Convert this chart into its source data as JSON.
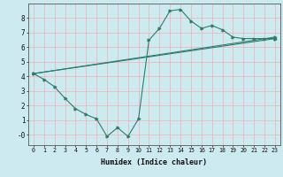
{
  "xlabel": "Humidex (Indice chaleur)",
  "line_color": "#2e7d6e",
  "bg_color": "#cdeaf0",
  "grid_color": "#f0b0b0",
  "xlim": [
    -0.5,
    23.5
  ],
  "ylim": [
    -0.7,
    9.0
  ],
  "xticks": [
    0,
    1,
    2,
    3,
    4,
    5,
    6,
    7,
    8,
    9,
    10,
    11,
    12,
    13,
    14,
    15,
    16,
    17,
    18,
    19,
    20,
    21,
    22,
    23
  ],
  "yticks": [
    0,
    1,
    2,
    3,
    4,
    5,
    6,
    7,
    8
  ],
  "ytick_labels": [
    "-0",
    "1",
    "2",
    "3",
    "4",
    "5",
    "6",
    "7",
    "8"
  ],
  "series1_x": [
    0,
    1,
    2,
    3,
    4,
    5,
    6,
    7,
    8,
    9,
    10,
    11,
    12,
    13,
    14,
    15,
    16,
    17,
    18,
    19,
    20,
    21,
    22,
    23
  ],
  "series1_y": [
    4.2,
    3.8,
    3.3,
    2.5,
    1.8,
    1.4,
    1.1,
    -0.1,
    0.5,
    -0.1,
    1.1,
    6.5,
    7.3,
    8.5,
    8.6,
    7.8,
    7.3,
    7.5,
    7.2,
    6.7,
    6.6,
    6.6,
    6.6,
    6.6
  ],
  "series2_x": [
    0,
    23
  ],
  "series2_y": [
    4.2,
    6.6
  ],
  "series3_x": [
    0,
    23
  ],
  "series3_y": [
    4.2,
    6.7
  ],
  "marker": ">"
}
